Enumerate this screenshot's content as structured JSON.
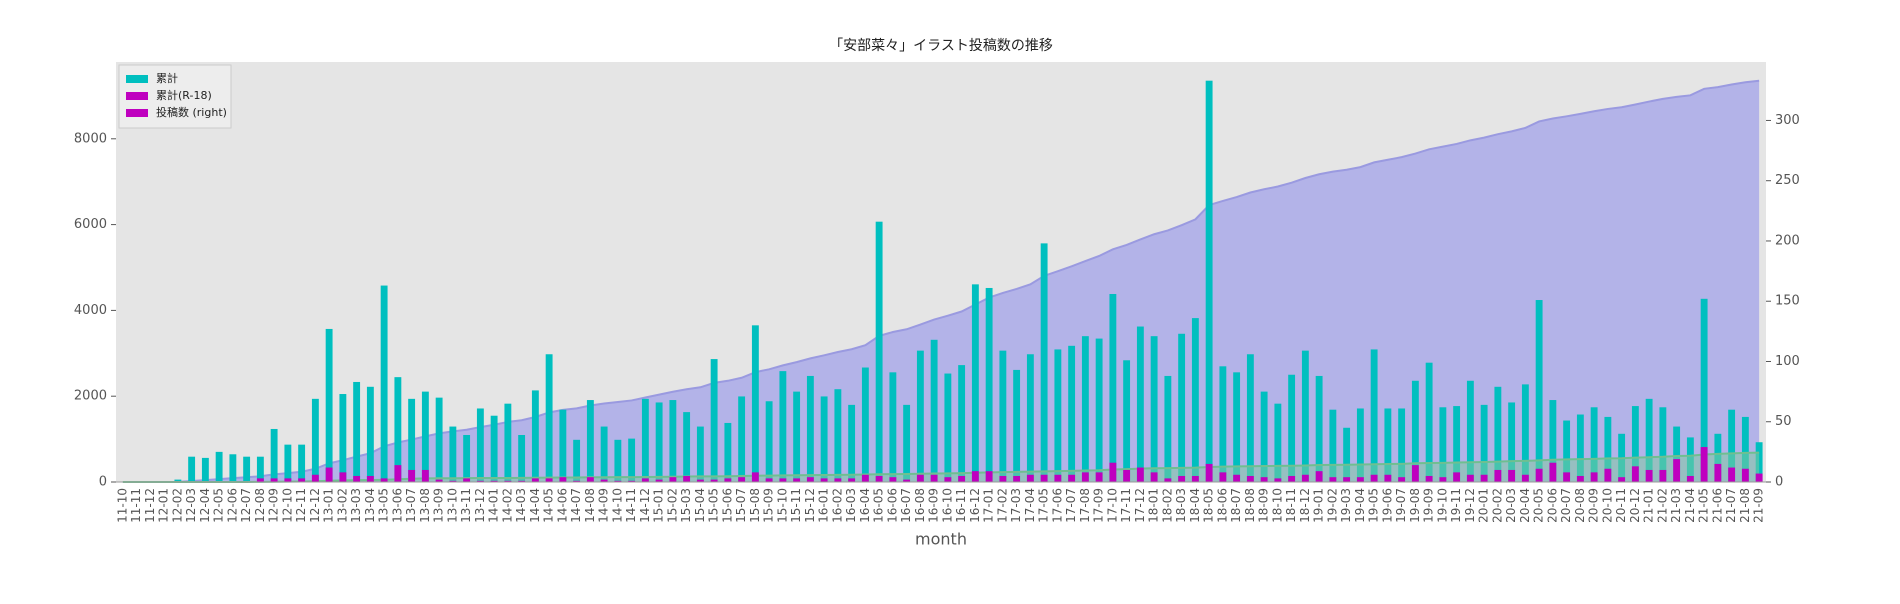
{
  "chart_data": {
    "type": "bar",
    "title": "「安部菜々」イラスト投稿数の推移",
    "x_label": "month",
    "categories": [
      "11-10",
      "11-11",
      "11-12",
      "12-01",
      "12-02",
      "12-03",
      "12-04",
      "12-05",
      "12-06",
      "12-07",
      "12-08",
      "12-09",
      "12-10",
      "12-11",
      "12-12",
      "13-01",
      "13-02",
      "13-03",
      "13-04",
      "13-05",
      "13-06",
      "13-07",
      "13-08",
      "13-09",
      "13-10",
      "13-11",
      "13-12",
      "14-01",
      "14-02",
      "14-03",
      "14-04",
      "14-05",
      "14-06",
      "14-07",
      "14-08",
      "14-09",
      "14-10",
      "14-11",
      "14-12",
      "15-01",
      "15-02",
      "15-03",
      "15-04",
      "15-05",
      "15-06",
      "15-07",
      "15-08",
      "15-09",
      "15-10",
      "15-11",
      "15-12",
      "16-01",
      "16-02",
      "16-03",
      "16-04",
      "16-05",
      "16-06",
      "16-07",
      "16-08",
      "16-09",
      "16-10",
      "16-11",
      "16-12",
      "17-01",
      "17-02",
      "17-03",
      "17-04",
      "17-05",
      "17-06",
      "17-07",
      "17-08",
      "17-09",
      "17-10",
      "17-11",
      "17-12",
      "18-01",
      "18-02",
      "18-03",
      "18-04",
      "18-05",
      "18-06",
      "18-07",
      "18-08",
      "18-09",
      "18-10",
      "18-11",
      "18-12",
      "19-01",
      "19-02",
      "19-03",
      "19-04",
      "19-05",
      "19-06",
      "19-07",
      "19-08",
      "19-09",
      "19-10",
      "19-11",
      "19-12",
      "20-01",
      "20-02",
      "20-03",
      "20-04",
      "20-05",
      "20-06",
      "20-07",
      "20-08",
      "20-09",
      "20-10",
      "20-11",
      "20-12",
      "21-01",
      "21-02",
      "21-03",
      "21-04",
      "21-05",
      "21-06",
      "21-07",
      "21-08",
      "21-09"
    ],
    "series": [
      {
        "kind": "area",
        "color": "#b3b3e8",
        "line_color": "#9a9ae0",
        "values": [
          0,
          0,
          0,
          0,
          2,
          23,
          43,
          68,
          91,
          112,
          133,
          177,
          208,
          239,
          308,
          435,
          508,
          591,
          670,
          833,
          920,
          989,
          1064,
          1134,
          1180,
          1219,
          1280,
          1335,
          1400,
          1439,
          1515,
          1621,
          1681,
          1716,
          1784,
          1830,
          1865,
          1901,
          1970,
          2036,
          2104,
          2162,
          2208,
          2310,
          2359,
          2430,
          2560,
          2627,
          2719,
          2794,
          2882,
          2953,
          3030,
          3094,
          3189,
          3405,
          3496,
          3560,
          3669,
          3787,
          3877,
          3974,
          4138,
          4299,
          4408,
          4501,
          4607,
          4805,
          4915,
          5028,
          5149,
          5268,
          5424,
          5525,
          5654,
          5775,
          5863,
          5986,
          6122,
          6455,
          6551,
          6642,
          6748,
          6823,
          6888,
          6977,
          7086,
          7174,
          7234,
          7279,
          7340,
          7450,
          7511,
          7572,
          7656,
          7755,
          7817,
          7880,
          7964,
          8028,
          8107,
          8173,
          8254,
          8405,
          8473,
          8524,
          8580,
          8642,
          8696,
          8736,
          8799,
          8868,
          8930,
          8976,
          9013,
          9165,
          9205,
          9265,
          9319,
          9352
        ]
      },
      {
        "kind": "bar",
        "axis": "y2",
        "color": "#00bfbf",
        "values": [
          0,
          0,
          0,
          0,
          2,
          21,
          20,
          25,
          23,
          21,
          21,
          44,
          31,
          31,
          69,
          127,
          73,
          83,
          79,
          163,
          87,
          69,
          75,
          70,
          46,
          39,
          61,
          55,
          65,
          39,
          76,
          106,
          60,
          35,
          68,
          46,
          35,
          36,
          69,
          66,
          68,
          58,
          46,
          102,
          49,
          71,
          130,
          67,
          92,
          75,
          88,
          71,
          77,
          64,
          95,
          216,
          91,
          64,
          109,
          118,
          90,
          97,
          164,
          161,
          109,
          93,
          106,
          198,
          110,
          113,
          121,
          119,
          156,
          101,
          129,
          121,
          88,
          123,
          136,
          333,
          96,
          91,
          106,
          75,
          65,
          89,
          109,
          88,
          60,
          45,
          61,
          110,
          61,
          61,
          84,
          99,
          62,
          63,
          84,
          64,
          79,
          66,
          81,
          151,
          68,
          51,
          56,
          62,
          54,
          40,
          63,
          69,
          62,
          46,
          37,
          152,
          40,
          60,
          54,
          33
        ]
      },
      {
        "kind": "area",
        "color": "#7fc8a0",
        "line_color": "#6fbf90",
        "opacity": 0.55,
        "values": [
          0,
          0,
          0,
          0,
          0,
          0,
          0,
          0,
          0,
          0,
          3,
          6,
          9,
          12,
          18,
          30,
          38,
          43,
          48,
          51,
          65,
          75,
          85,
          87,
          88,
          91,
          92,
          93,
          94,
          95,
          98,
          101,
          105,
          106,
          110,
          112,
          113,
          114,
          117,
          119,
          123,
          128,
          130,
          132,
          135,
          139,
          147,
          150,
          153,
          156,
          160,
          163,
          166,
          169,
          175,
          180,
          184,
          186,
          192,
          198,
          202,
          207,
          216,
          225,
          230,
          235,
          241,
          247,
          253,
          259,
          267,
          275,
          291,
          301,
          313,
          321,
          324,
          329,
          334,
          349,
          357,
          363,
          368,
          372,
          375,
          380,
          386,
          395,
          399,
          403,
          407,
          413,
          419,
          423,
          437,
          442,
          446,
          454,
          460,
          466,
          476,
          486,
          492,
          503,
          519,
          527,
          532,
          540,
          551,
          555,
          568,
          578,
          588,
          607,
          612,
          641,
          656,
          668,
          679,
          686
        ]
      },
      {
        "kind": "bar",
        "axis": "y2",
        "color": "#bf00bf",
        "values": [
          0,
          0,
          0,
          0,
          0,
          0,
          0,
          0,
          0,
          0,
          3,
          3,
          3,
          3,
          6,
          12,
          8,
          5,
          5,
          3,
          14,
          10,
          10,
          2,
          1,
          3,
          1,
          1,
          1,
          1,
          3,
          3,
          4,
          1,
          4,
          2,
          1,
          1,
          3,
          2,
          4,
          5,
          2,
          2,
          3,
          4,
          8,
          3,
          3,
          3,
          4,
          3,
          3,
          3,
          6,
          5,
          4,
          2,
          6,
          6,
          4,
          5,
          9,
          9,
          5,
          5,
          6,
          6,
          6,
          6,
          8,
          8,
          16,
          10,
          12,
          8,
          3,
          5,
          5,
          15,
          8,
          6,
          5,
          4,
          3,
          5,
          6,
          9,
          4,
          4,
          4,
          6,
          6,
          4,
          14,
          5,
          4,
          8,
          6,
          6,
          10,
          10,
          6,
          11,
          16,
          8,
          5,
          8,
          11,
          4,
          13,
          10,
          10,
          19,
          5,
          29,
          15,
          12,
          11,
          7
        ]
      }
    ],
    "ylim": [
      0,
      9790
    ],
    "yticks": [
      0,
      2000,
      4000,
      6000,
      8000
    ],
    "y2lim": [
      0,
      348.5
    ],
    "y2ticks": [
      0,
      50,
      100,
      150,
      200,
      250,
      300
    ],
    "grid": false,
    "background": "#e5e5e5",
    "legend": {
      "position": "upper left",
      "entries": [
        {
          "label": "累計",
          "color": "#00bfbf"
        },
        {
          "label": "累計(R-18)",
          "color": "#bf00bf"
        },
        {
          "label": "投稿数 (right)",
          "color": "#bf00bf"
        }
      ]
    }
  }
}
